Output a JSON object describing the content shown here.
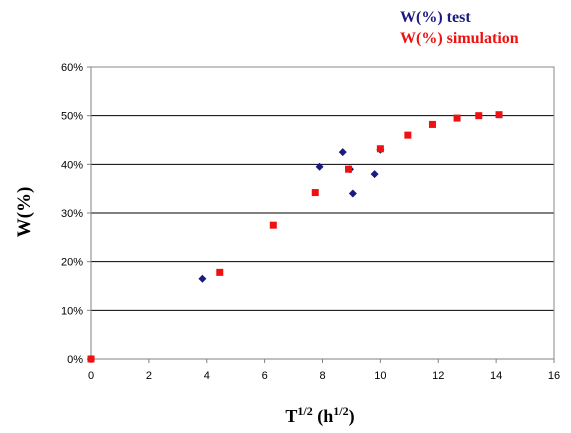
{
  "chart_data": {
    "type": "scatter",
    "xlim": [
      0,
      16
    ],
    "ylim": [
      0,
      60
    ],
    "x_ticks": [
      "0",
      "2",
      "4",
      "6",
      "8",
      "10",
      "12",
      "14",
      "16"
    ],
    "y_ticks": [
      "0%",
      "10%",
      "20%",
      "30%",
      "40%",
      "50%",
      "60%"
    ],
    "x_tick_values": [
      0,
      2,
      4,
      6,
      8,
      10,
      12,
      14,
      16
    ],
    "y_tick_values": [
      0,
      10,
      20,
      30,
      40,
      50,
      60
    ],
    "xlabel": {
      "base": "T",
      "base_sup": "1/2",
      "mid": " (h",
      "mid_sup": "1/2",
      "end": ")"
    },
    "ylabel": "W(%)",
    "grid": "horizontal",
    "legend_position": "top-right",
    "series": [
      {
        "name": "W(%) test",
        "color": "#1a1a80",
        "marker": "diamond",
        "points": [
          {
            "x": 0,
            "y": 0
          },
          {
            "x": 3.85,
            "y": 16.5
          },
          {
            "x": 7.9,
            "y": 39.5
          },
          {
            "x": 8.7,
            "y": 42.5
          },
          {
            "x": 8.95,
            "y": 39
          },
          {
            "x": 9.05,
            "y": 34
          },
          {
            "x": 9.8,
            "y": 38
          },
          {
            "x": 10,
            "y": 43
          }
        ]
      },
      {
        "name": "W(%) simulation",
        "color": "#ee1111",
        "marker": "square",
        "points": [
          {
            "x": 0,
            "y": 0
          },
          {
            "x": 4.45,
            "y": 17.8
          },
          {
            "x": 6.3,
            "y": 27.5
          },
          {
            "x": 7.75,
            "y": 34.2
          },
          {
            "x": 8.9,
            "y": 39
          },
          {
            "x": 10,
            "y": 43.2
          },
          {
            "x": 10.95,
            "y": 46
          },
          {
            "x": 11.8,
            "y": 48.2
          },
          {
            "x": 12.65,
            "y": 49.5
          },
          {
            "x": 13.4,
            "y": 50
          },
          {
            "x": 14.1,
            "y": 50.2
          }
        ]
      }
    ]
  }
}
